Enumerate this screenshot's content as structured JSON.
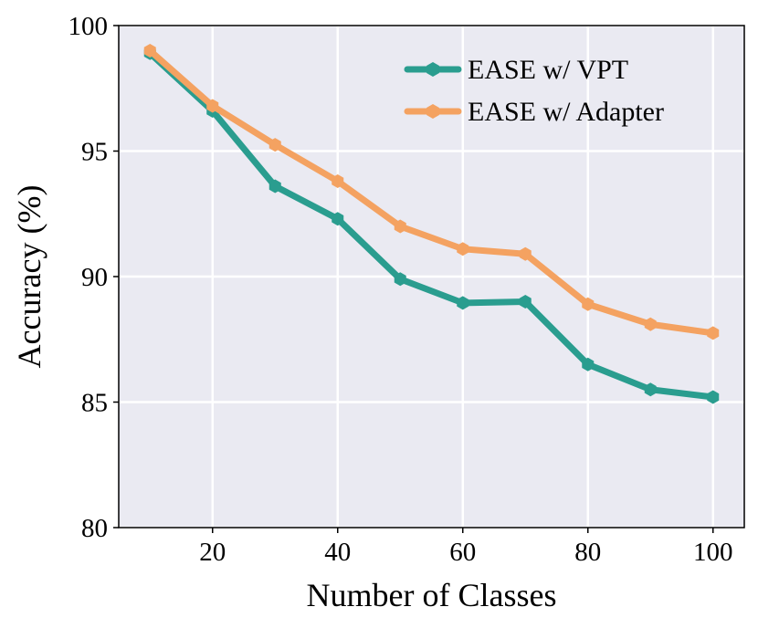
{
  "chart_data": {
    "type": "line",
    "title": "",
    "xlabel": "Number of Classes",
    "ylabel": "Accuracy (%)",
    "x": [
      10,
      20,
      30,
      40,
      50,
      60,
      70,
      80,
      90,
      100
    ],
    "xlim": [
      5,
      105
    ],
    "ylim": [
      80,
      100
    ],
    "xticks": [
      20,
      40,
      60,
      80,
      100
    ],
    "yticks": [
      80,
      85,
      90,
      95,
      100
    ],
    "grid": true,
    "legend_position": "top-right",
    "series": [
      {
        "name": "EASE w/ VPT",
        "color": "#2a9d8f",
        "marker": "hexagon",
        "values": [
          98.9,
          96.6,
          93.6,
          92.3,
          89.9,
          88.95,
          89.0,
          86.5,
          85.5,
          85.2
        ]
      },
      {
        "name": "EASE w/ Adapter",
        "color": "#f4a261",
        "marker": "hexagon",
        "values": [
          99.0,
          96.8,
          95.25,
          93.8,
          92.0,
          91.1,
          90.9,
          88.9,
          88.1,
          87.75
        ]
      }
    ],
    "background_color": "#eaeaf2"
  }
}
